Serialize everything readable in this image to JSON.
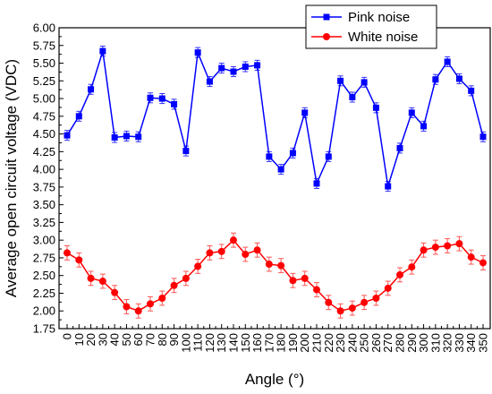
{
  "chart_data": {
    "type": "line",
    "title": "",
    "xlabel": "Angle (°)",
    "ylabel": "Average open circuit voltage (VDC)",
    "xlim": [
      0,
      350
    ],
    "ylim": [
      1.75,
      6.0
    ],
    "x_ticks": [
      "0",
      "10",
      "20",
      "30",
      "40",
      "50",
      "60",
      "70",
      "80",
      "90",
      "100",
      "110",
      "120",
      "130",
      "140",
      "150",
      "160",
      "170",
      "180",
      "190",
      "200",
      "210",
      "220",
      "230",
      "240",
      "250",
      "260",
      "270",
      "280",
      "290",
      "300",
      "310",
      "320",
      "330",
      "340",
      "350"
    ],
    "y_ticks": [
      "1.75",
      "2.00",
      "2.25",
      "2.50",
      "2.75",
      "3.00",
      "3.25",
      "3.50",
      "3.75",
      "4.00",
      "4.25",
      "4.50",
      "4.75",
      "5.00",
      "5.25",
      "5.50",
      "5.75",
      "6.00"
    ],
    "x": [
      0,
      10,
      20,
      30,
      40,
      50,
      60,
      70,
      80,
      90,
      100,
      110,
      120,
      130,
      140,
      150,
      160,
      170,
      180,
      190,
      200,
      210,
      220,
      230,
      240,
      250,
      260,
      270,
      280,
      290,
      300,
      310,
      320,
      330,
      340,
      350
    ],
    "legend_position": "top-right",
    "grid": false,
    "series": [
      {
        "name": "Pink noise",
        "color": "#0000ff",
        "marker": "square",
        "values": [
          4.48,
          4.75,
          5.13,
          5.67,
          4.45,
          4.47,
          4.46,
          5.01,
          5.0,
          4.92,
          4.26,
          5.65,
          5.24,
          5.43,
          5.38,
          5.45,
          5.47,
          4.18,
          4.0,
          4.23,
          4.8,
          3.8,
          4.18,
          5.25,
          5.02,
          5.23,
          4.87,
          3.76,
          4.3,
          4.8,
          4.61,
          5.27,
          5.52,
          5.28,
          5.11,
          4.46
        ],
        "error": 0.07
      },
      {
        "name": "White noise",
        "color": "#ff0000",
        "marker": "circle",
        "values": [
          2.82,
          2.72,
          2.46,
          2.42,
          2.26,
          2.06,
          2.0,
          2.1,
          2.18,
          2.36,
          2.46,
          2.63,
          2.82,
          2.84,
          3.0,
          2.8,
          2.86,
          2.66,
          2.64,
          2.43,
          2.46,
          2.3,
          2.12,
          2.0,
          2.04,
          2.12,
          2.18,
          2.32,
          2.51,
          2.62,
          2.86,
          2.9,
          2.92,
          2.95,
          2.76,
          2.68
        ],
        "error": 0.1
      }
    ]
  }
}
